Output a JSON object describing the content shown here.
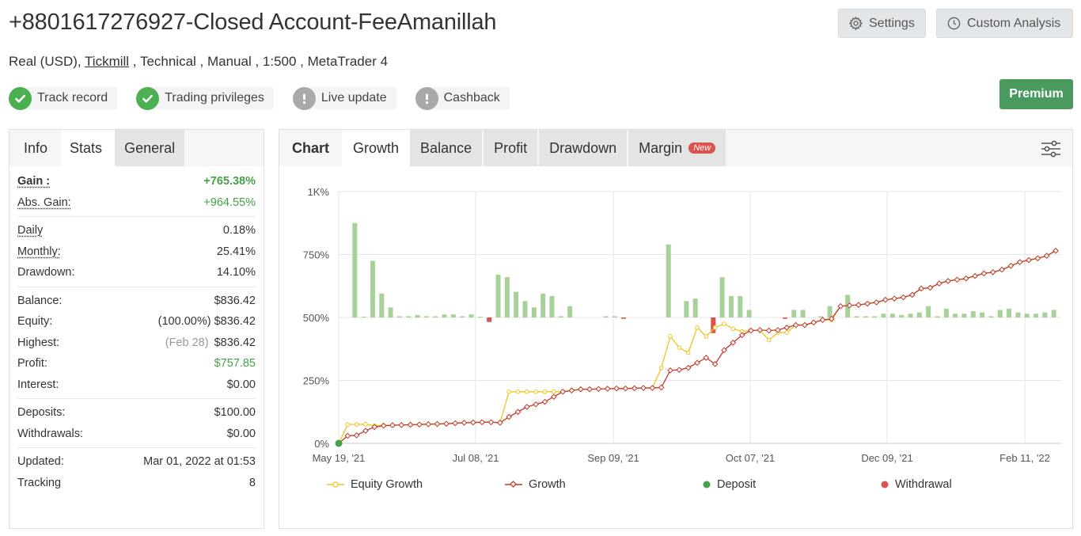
{
  "header": {
    "title": "+8801617276927-Closed Account-FeeAmanillah",
    "sub_prefix": "Real (USD), ",
    "broker": "Tickmill",
    "sub_suffix": " , Technical , Manual , 1:500 , MetaTrader 4",
    "settings_label": "Settings",
    "custom_analysis_label": "Custom Analysis",
    "premium_label": "Premium"
  },
  "badges": [
    {
      "label": "Track record",
      "status": "ok",
      "icon": "check-icon"
    },
    {
      "label": "Trading privileges",
      "status": "ok",
      "icon": "check-icon"
    },
    {
      "label": "Live update",
      "status": "warn",
      "icon": "exclamation-icon"
    },
    {
      "label": "Cashback",
      "status": "warn",
      "icon": "exclamation-icon"
    }
  ],
  "left_tabs": [
    "Info",
    "Stats",
    "General"
  ],
  "stats": {
    "gain_label": "Gain :",
    "gain": "+765.38%",
    "abs_gain_label": "Abs. Gain:",
    "abs_gain": "+964.55%",
    "daily_label": "Daily",
    "daily": "0.18%",
    "monthly_label": "Monthly:",
    "monthly": "25.41%",
    "drawdown_label": "Drawdown:",
    "drawdown": "14.10%",
    "balance_label": "Balance:",
    "balance": "$836.42",
    "equity_label": "Equity:",
    "equity_pct": "(100.00%)",
    "equity": "$836.42",
    "highest_label": "Highest:",
    "highest_date": "(Feb 28)",
    "highest": "$836.42",
    "profit_label": "Profit:",
    "profit": "$757.85",
    "interest_label": "Interest:",
    "interest": "$0.00",
    "deposits_label": "Deposits:",
    "deposits": "$100.00",
    "withdrawals_label": "Withdrawals:",
    "withdrawals": "$0.00",
    "updated_label": "Updated:",
    "updated": "Mar 01, 2022 at 01:53",
    "tracking_label": "Tracking",
    "tracking": "8"
  },
  "chart_tabs": {
    "chart": "Chart",
    "growth": "Growth",
    "balance": "Balance",
    "profit": "Profit",
    "drawdown": "Drawdown",
    "margin": "Margin",
    "new_badge": "New"
  },
  "colors": {
    "equity": "#f0c419",
    "growth": "#c0392b",
    "bar_pos": "#a8d199",
    "bar_neg": "#d9534f",
    "deposit": "#46a049",
    "withdrawal": "#d9534f"
  },
  "legend": {
    "equity": "Equity Growth",
    "growth": "Growth",
    "deposit": "Deposit",
    "withdrawal": "Withdrawal"
  },
  "chart_data": {
    "type": "line",
    "y_ticks": [
      "0%",
      "250%",
      "500%",
      "750%",
      "1K%"
    ],
    "x_ticks": [
      "May 19, '21",
      "Jul 08, '21",
      "Sep 09, '21",
      "Oct 07, '21",
      "Dec 09, '21",
      "Feb 11, '22"
    ],
    "ylim": [
      0,
      1000
    ],
    "growth": [
      0,
      30,
      32,
      50,
      65,
      70,
      72,
      73,
      74,
      75,
      76,
      77,
      78,
      80,
      82,
      83,
      84,
      84,
      82,
      105,
      125,
      145,
      155,
      165,
      185,
      205,
      210,
      215,
      215,
      216,
      217,
      218,
      218,
      219,
      220,
      220,
      222,
      290,
      292,
      300,
      320,
      340,
      315,
      370,
      400,
      430,
      448,
      450,
      448,
      450,
      460,
      470,
      470,
      480,
      490,
      495,
      545,
      548,
      550,
      555,
      560,
      570,
      575,
      580,
      590,
      615,
      618,
      635,
      645,
      650,
      655,
      665,
      675,
      680,
      690,
      705,
      720,
      728,
      735,
      745,
      765
    ],
    "equity": [
      0,
      75,
      75,
      76,
      70,
      72,
      72,
      73,
      74,
      75,
      76,
      77,
      78,
      80,
      82,
      83,
      84,
      84,
      82,
      205,
      205,
      205,
      205,
      205,
      205,
      205,
      210,
      215,
      215,
      216,
      217,
      218,
      218,
      219,
      220,
      220,
      300,
      425,
      380,
      360,
      460,
      425,
      460,
      475,
      455,
      445,
      448,
      450,
      410,
      440,
      440,
      470,
      470,
      480,
      490,
      490,
      545,
      548,
      550,
      555,
      560,
      570,
      575,
      580,
      590,
      615,
      618,
      635,
      645,
      650,
      655,
      665,
      675,
      680,
      690,
      705,
      720,
      728,
      735,
      745,
      765
    ],
    "bars": [
      0,
      375,
      3,
      225,
      95,
      40,
      5,
      5,
      10,
      5,
      5,
      12,
      12,
      5,
      12,
      3,
      -18,
      170,
      160,
      102,
      65,
      40,
      95,
      85,
      5,
      45,
      0,
      0,
      0,
      5,
      5,
      -5,
      0,
      0,
      0,
      0,
      290,
      0,
      65,
      75,
      0,
      -62,
      160,
      85,
      85,
      30,
      0,
      0,
      0,
      -5,
      30,
      30,
      0,
      5,
      45,
      0,
      90,
      5,
      5,
      5,
      15,
      15,
      10,
      15,
      20,
      45,
      5,
      35,
      15,
      15,
      25,
      20,
      5,
      30,
      35,
      20,
      15,
      15,
      20,
      30
    ],
    "deposit_index": 0
  }
}
